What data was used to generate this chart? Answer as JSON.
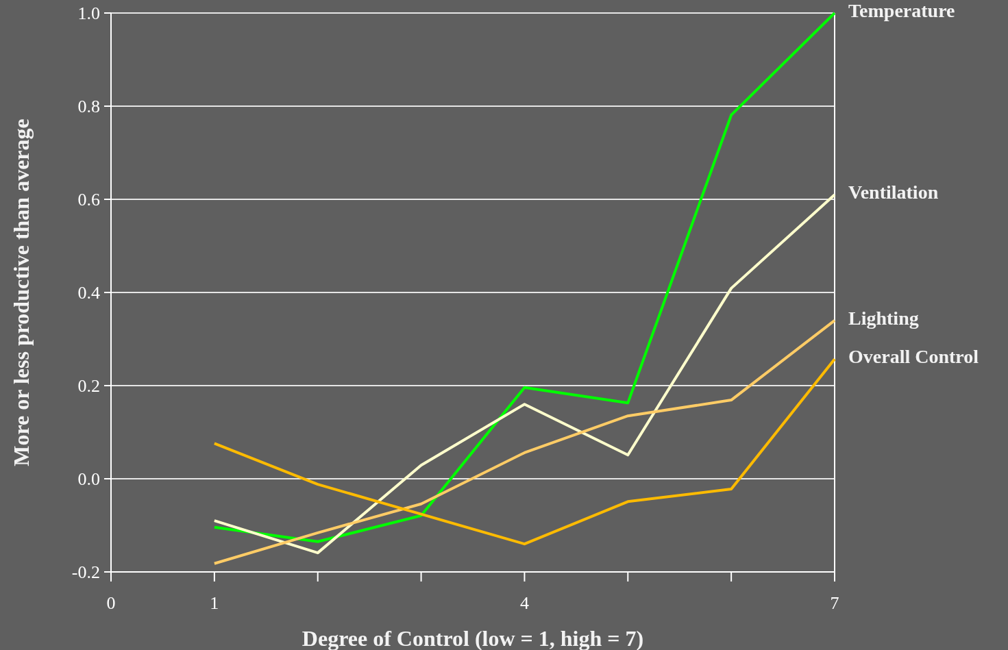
{
  "chart_data": {
    "type": "line",
    "xlabel": "Degree of Control (low = 1, high = 7)",
    "ylabel": "More or less productive than average",
    "x": [
      1,
      2,
      3,
      4,
      5,
      6,
      7
    ],
    "xlim": [
      0,
      7
    ],
    "xticks": [
      0,
      1,
      {
        "value": 2,
        "label": null
      },
      {
        "value": 3,
        "label": null
      },
      4,
      {
        "value": 5,
        "label": null
      },
      {
        "value": 6,
        "label": null
      },
      7
    ],
    "ylim": [
      -0.2,
      1.0
    ],
    "yticks": [
      {
        "value": -0.2,
        "label": "-0.2"
      },
      {
        "value": 0,
        "label": "0.0"
      },
      {
        "value": 0.2,
        "label": "0.2"
      },
      {
        "value": 0.4,
        "label": "0.4"
      },
      {
        "value": 0.6,
        "label": "0.6"
      },
      {
        "value": 0.8,
        "label": "0.8"
      },
      {
        "value": 1.0,
        "label": "1.0"
      }
    ],
    "grid": "y",
    "legend": false,
    "marker": "none",
    "line_style": "solid",
    "series": [
      {
        "name": "Temperature",
        "color": "#00ff00",
        "values": [
          -0.104,
          -0.135,
          -0.079,
          0.196,
          0.163,
          0.781,
          1.0
        ]
      },
      {
        "name": "Ventilation",
        "color": "#ffffcc",
        "values": [
          -0.09,
          -0.159,
          0.029,
          0.16,
          0.051,
          0.409,
          0.61
        ]
      },
      {
        "name": "Lighting",
        "color": "#ffcc66",
        "values": [
          -0.182,
          -0.116,
          -0.054,
          0.056,
          0.135,
          0.169,
          0.34
        ]
      },
      {
        "name": "Overall Control",
        "color": "#ffbb00",
        "values": [
          0.076,
          -0.012,
          -0.076,
          -0.14,
          -0.049,
          -0.022,
          0.257
        ]
      }
    ]
  }
}
